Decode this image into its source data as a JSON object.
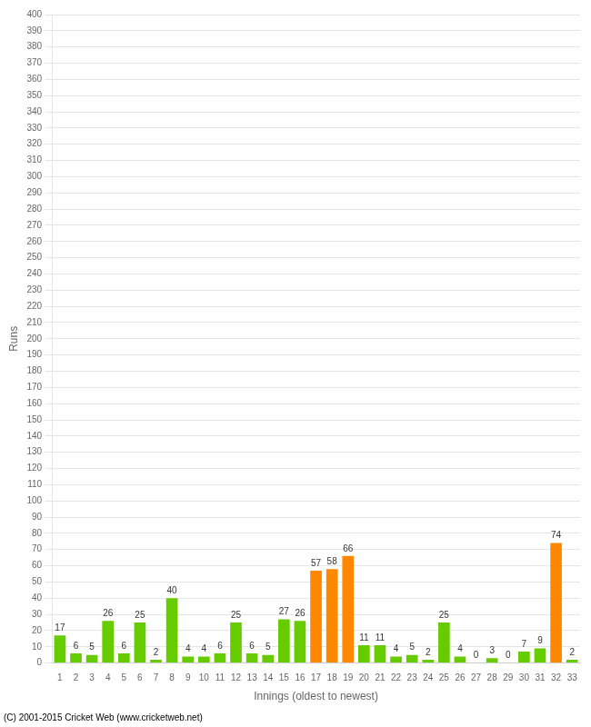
{
  "chart_data": {
    "type": "bar",
    "categories": [
      "1",
      "2",
      "3",
      "4",
      "5",
      "6",
      "7",
      "8",
      "9",
      "10",
      "11",
      "12",
      "13",
      "14",
      "15",
      "16",
      "17",
      "18",
      "19",
      "20",
      "21",
      "22",
      "23",
      "24",
      "25",
      "26",
      "27",
      "28",
      "29",
      "30",
      "31",
      "32",
      "33"
    ],
    "values": [
      17,
      6,
      5,
      26,
      6,
      25,
      2,
      40,
      4,
      4,
      6,
      25,
      6,
      5,
      27,
      26,
      57,
      58,
      66,
      11,
      11,
      4,
      5,
      2,
      25,
      4,
      0,
      3,
      0,
      7,
      9,
      74,
      2
    ],
    "colors": [
      "#66cc00",
      "#66cc00",
      "#66cc00",
      "#66cc00",
      "#66cc00",
      "#66cc00",
      "#66cc00",
      "#66cc00",
      "#66cc00",
      "#66cc00",
      "#66cc00",
      "#66cc00",
      "#66cc00",
      "#66cc00",
      "#66cc00",
      "#66cc00",
      "#ff8800",
      "#ff8800",
      "#ff8800",
      "#66cc00",
      "#66cc00",
      "#66cc00",
      "#66cc00",
      "#66cc00",
      "#66cc00",
      "#66cc00",
      "#66cc00",
      "#66cc00",
      "#66cc00",
      "#66cc00",
      "#66cc00",
      "#ff8800",
      "#66cc00"
    ],
    "x_label": "Innings (oldest to newest)",
    "y_label": "Runs",
    "ylim": [
      0,
      400
    ],
    "yticks": [
      0,
      10,
      20,
      30,
      40,
      50,
      60,
      70,
      80,
      90,
      100,
      110,
      120,
      130,
      140,
      150,
      160,
      170,
      180,
      190,
      200,
      210,
      220,
      230,
      240,
      250,
      260,
      270,
      280,
      290,
      300,
      310,
      320,
      330,
      340,
      350,
      360,
      370,
      380,
      390,
      400
    ],
    "grid": true,
    "data_labels": true,
    "annotations": [
      "(C) 2001-2015 Cricket Web (www.cricketweb.net)"
    ]
  }
}
